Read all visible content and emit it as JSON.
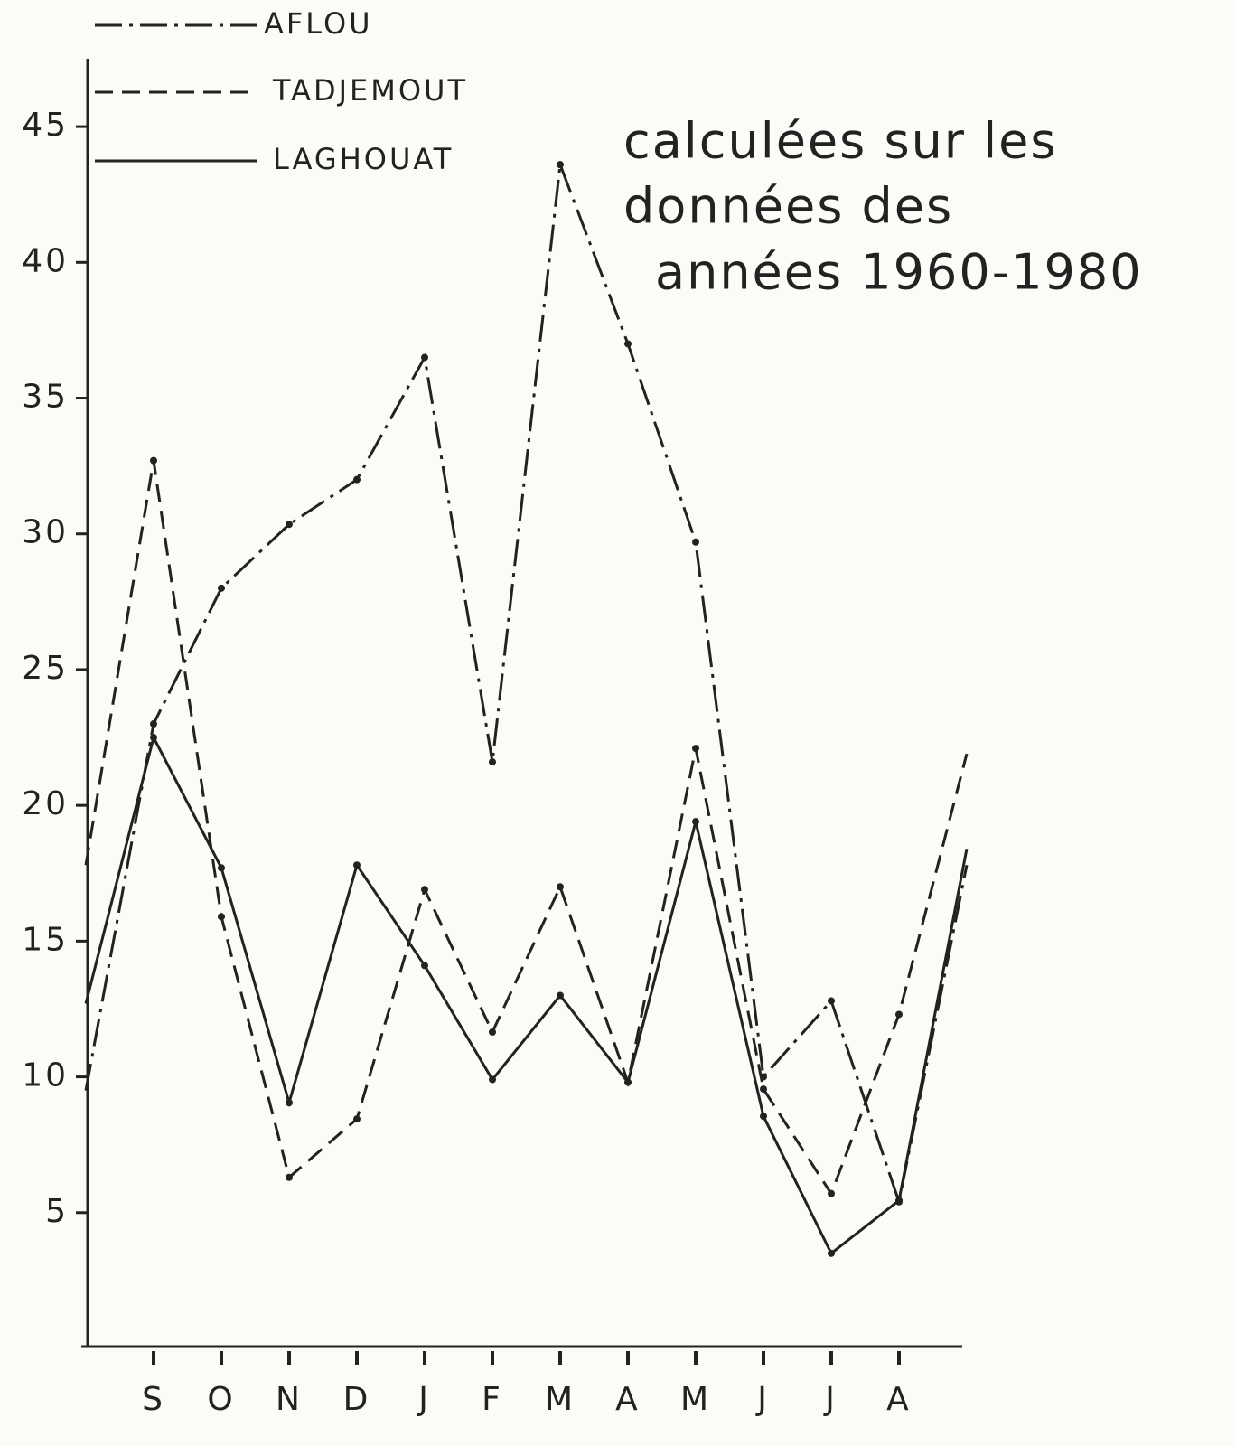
{
  "chart_data": {
    "type": "line",
    "annotation": [
      "calculées sur les",
      "données des",
      "années 1960-1980"
    ],
    "categories": [
      null,
      "S",
      "O",
      "N",
      "D",
      "J",
      "F",
      "M",
      "A",
      "M",
      "J",
      "J",
      "A",
      null
    ],
    "series": [
      {
        "name": "AFLOU",
        "color": "#222222",
        "style": "dashdot",
        "values": [
          9.5,
          23.0,
          28.0,
          30.35,
          32.0,
          36.5,
          21.6,
          43.6,
          37.0,
          29.7,
          10.0,
          12.8,
          5.4,
          17.8
        ]
      },
      {
        "name": "TADJEMOUT",
        "color": "#222222",
        "style": "dashed",
        "values": [
          17.8,
          32.7,
          15.9,
          6.3,
          8.45,
          16.9,
          11.65,
          17.0,
          9.8,
          22.1,
          9.55,
          5.7,
          12.3,
          21.9
        ]
      },
      {
        "name": "LAGHOUAT",
        "color": "#222222",
        "style": "solid",
        "values": [
          12.7,
          22.5,
          17.7,
          9.05,
          17.8,
          14.1,
          9.9,
          13.0,
          9.8,
          19.4,
          8.55,
          3.5,
          5.45,
          18.4
        ]
      }
    ],
    "ylim": [
      0,
      47.5
    ],
    "yticks": [
      5,
      10,
      15,
      20,
      25,
      30,
      35,
      40,
      45
    ],
    "grid": false
  }
}
